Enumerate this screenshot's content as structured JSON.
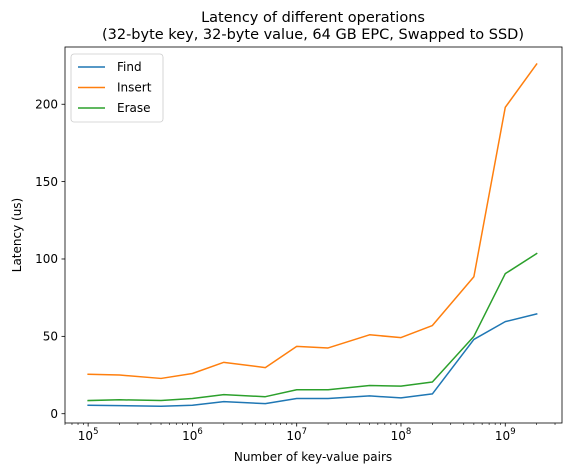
{
  "chart_data": {
    "type": "line",
    "title_line1": "Latency of different operations",
    "title_line2": "(32-byte key, 32-byte value, 64 GB EPC, Swapped to SSD)",
    "xlabel": "Number of key-value pairs",
    "ylabel": "Latency (us)",
    "xscale": "log",
    "xlim": [
      60000,
      3500000000
    ],
    "ylim": [
      -6,
      237
    ],
    "legend_position": "top-left",
    "x": [
      100000,
      200000,
      500000,
      1000000,
      2000000,
      5000000,
      10000000,
      20000000,
      50000000,
      100000000,
      200000000,
      500000000,
      1000000000,
      2000000000
    ],
    "x_ticks": [
      {
        "value": 100000,
        "base": "10",
        "exp": "5"
      },
      {
        "value": 1000000,
        "base": "10",
        "exp": "6"
      },
      {
        "value": 10000000,
        "base": "10",
        "exp": "7"
      },
      {
        "value": 100000000,
        "base": "10",
        "exp": "8"
      },
      {
        "value": 1000000000,
        "base": "10",
        "exp": "9"
      }
    ],
    "y_ticks": [
      {
        "value": 0,
        "label": "0"
      },
      {
        "value": 50,
        "label": "50"
      },
      {
        "value": 100,
        "label": "100"
      },
      {
        "value": 150,
        "label": "150"
      },
      {
        "value": 200,
        "label": "200"
      }
    ],
    "series": [
      {
        "name": "Find",
        "color": "#1f77b4",
        "values": [
          5.5,
          5.2,
          4.8,
          5.5,
          7.8,
          6.5,
          9.8,
          9.8,
          11.5,
          10.2,
          12.8,
          48,
          59.5,
          64.5
        ]
      },
      {
        "name": "Insert",
        "color": "#ff7f0e",
        "values": [
          25.5,
          25,
          22.8,
          26,
          33.2,
          29.8,
          43.5,
          42.5,
          51,
          49.2,
          57,
          88.5,
          198,
          226
        ]
      },
      {
        "name": "Erase",
        "color": "#2ca02c",
        "values": [
          8.5,
          9,
          8.5,
          9.8,
          12.3,
          11,
          15.5,
          15.5,
          18.2,
          17.8,
          20.5,
          50,
          90.5,
          103.5
        ]
      }
    ]
  }
}
